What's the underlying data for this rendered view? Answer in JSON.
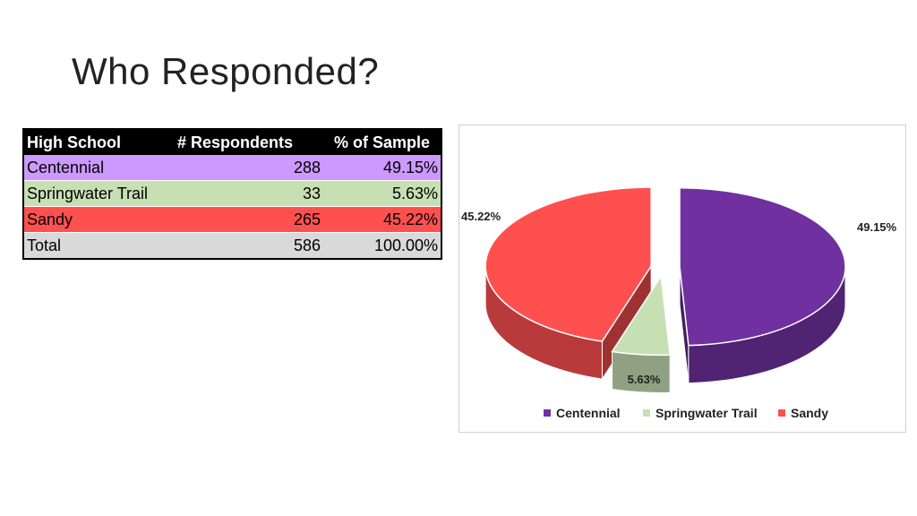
{
  "slide": {
    "title": "Who Responded?"
  },
  "table": {
    "headers": [
      "High School",
      "# Respondents",
      "% of Sample"
    ],
    "rows": [
      {
        "school": "Centennial",
        "respondents": "288",
        "percent": "49.15%",
        "color": "#cc99ff"
      },
      {
        "school": "Springwater Trail",
        "respondents": "33",
        "percent": "5.63%",
        "color": "#c6e0b4"
      },
      {
        "school": "Sandy",
        "respondents": "265",
        "percent": "45.22%",
        "color": "#ff5050"
      },
      {
        "school": "Total",
        "respondents": "586",
        "percent": "100.00%",
        "color": "#d9d9d9"
      }
    ]
  },
  "chart_data": {
    "type": "pie",
    "style": "3d-exploded",
    "categories": [
      "Centennial",
      "Springwater Trail",
      "Sandy"
    ],
    "values": [
      49.15,
      5.63,
      45.22
    ],
    "data_labels": [
      "49.15%",
      "5.63%",
      "45.22%"
    ],
    "colors": [
      "#7030a0",
      "#c6e0b4",
      "#ff5050"
    ],
    "legend_position": "bottom",
    "title": ""
  }
}
